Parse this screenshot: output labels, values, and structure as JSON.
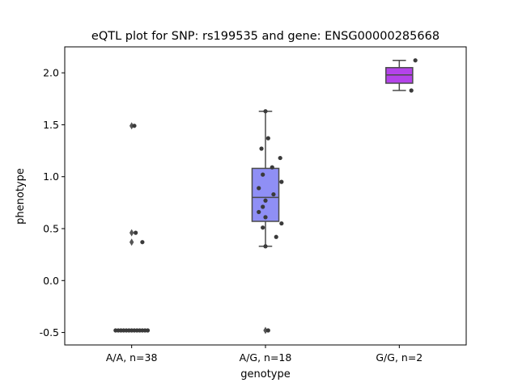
{
  "chart_data": {
    "type": "box",
    "title": "eQTL plot for SNP: rs199535 and gene: ENSG00000285668",
    "xlabel": "genotype",
    "ylabel": "phenotype",
    "ylim": [
      -0.62,
      2.25
    ],
    "yticks": [
      "-0.5",
      "0.0",
      "0.5",
      "1.0",
      "1.5",
      "2.0"
    ],
    "categories": [
      "A/A, n=38",
      "A/G, n=18",
      "G/G, n=2"
    ],
    "grid": false,
    "colors": {
      "box_fill": [
        "#4878d0",
        "#8f8ff5",
        "#b443ea"
      ],
      "edge": "#4a4a4a",
      "point": "#3a3a3a"
    },
    "boxes": [
      {
        "q1": -0.48,
        "median": -0.48,
        "q3": -0.48,
        "whisker_low": -0.48,
        "whisker_high": -0.48,
        "outliers": [
          1.49,
          0.46,
          0.37
        ]
      },
      {
        "q1": 0.57,
        "median": 0.8,
        "q3": 1.08,
        "whisker_low": 0.33,
        "whisker_high": 1.63,
        "outliers": [
          -0.48
        ]
      },
      {
        "q1": 1.9,
        "median": 1.98,
        "q3": 2.05,
        "whisker_low": 1.83,
        "whisker_high": 2.12,
        "outliers": []
      }
    ],
    "points": [
      {
        "x": -0.12,
        "y": -0.48
      },
      {
        "x": -0.1,
        "y": -0.48
      },
      {
        "x": -0.08,
        "y": -0.48
      },
      {
        "x": -0.06,
        "y": -0.48
      },
      {
        "x": -0.04,
        "y": -0.48
      },
      {
        "x": -0.02,
        "y": -0.48
      },
      {
        "x": 0.0,
        "y": -0.48
      },
      {
        "x": 0.02,
        "y": -0.48
      },
      {
        "x": 0.04,
        "y": -0.48
      },
      {
        "x": 0.06,
        "y": -0.48
      },
      {
        "x": 0.08,
        "y": -0.48
      },
      {
        "x": 0.1,
        "y": -0.48
      },
      {
        "x": 0.12,
        "y": -0.48
      },
      {
        "x": 0.02,
        "y": 1.49
      },
      {
        "x": 0.03,
        "y": 0.46
      },
      {
        "x": 0.08,
        "y": 0.37
      },
      {
        "x": 1.0,
        "y": 1.63
      },
      {
        "x": 0.97,
        "y": 1.27
      },
      {
        "x": 1.02,
        "y": 1.37
      },
      {
        "x": 1.11,
        "y": 1.18
      },
      {
        "x": 1.05,
        "y": 1.09
      },
      {
        "x": 0.98,
        "y": 1.02
      },
      {
        "x": 1.12,
        "y": 0.95
      },
      {
        "x": 0.95,
        "y": 0.89
      },
      {
        "x": 1.06,
        "y": 0.83
      },
      {
        "x": 1.0,
        "y": 0.77
      },
      {
        "x": 0.98,
        "y": 0.71
      },
      {
        "x": 0.95,
        "y": 0.66
      },
      {
        "x": 1.0,
        "y": 0.61
      },
      {
        "x": 1.12,
        "y": 0.55
      },
      {
        "x": 0.98,
        "y": 0.51
      },
      {
        "x": 1.08,
        "y": 0.42
      },
      {
        "x": 1.0,
        "y": 0.33
      },
      {
        "x": 1.02,
        "y": -0.48
      },
      {
        "x": 2.12,
        "y": 2.12
      },
      {
        "x": 2.09,
        "y": 1.83
      }
    ]
  }
}
